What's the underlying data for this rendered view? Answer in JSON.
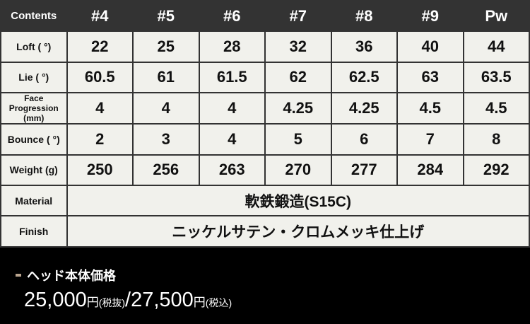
{
  "header": {
    "contents": "Contents",
    "clubs": [
      "#4",
      "#5",
      "#6",
      "#7",
      "#8",
      "#9",
      "Pw"
    ]
  },
  "rows": [
    {
      "label": "Loft ( °)",
      "values": [
        "22",
        "25",
        "28",
        "32",
        "36",
        "40",
        "44"
      ]
    },
    {
      "label": "Lie ( °)",
      "values": [
        "60.5",
        "61",
        "61.5",
        "62",
        "62.5",
        "63",
        "63.5"
      ]
    },
    {
      "label": "Face Progression (mm)",
      "values": [
        "4",
        "4",
        "4",
        "4.25",
        "4.25",
        "4.5",
        "4.5"
      ]
    },
    {
      "label": "Bounce ( °)",
      "values": [
        "2",
        "3",
        "4",
        "5",
        "6",
        "7",
        "8"
      ]
    },
    {
      "label": "Weight (g)",
      "values": [
        "250",
        "256",
        "263",
        "270",
        "277",
        "284",
        "292"
      ]
    }
  ],
  "material": {
    "label": "Material",
    "value": "軟鉄鍛造(S15C)"
  },
  "finish": {
    "label": "Finish",
    "value": "ニッケルサテン・クロムメッキ仕上げ"
  },
  "price": {
    "title": "ヘッド本体価格",
    "excl": "25,000",
    "yen1": "円",
    "excl_note": "(税抜)",
    "sep": "/",
    "incl": "27,500",
    "yen2": "円",
    "incl_note": "(税込)",
    "accent": "#b9a48e"
  }
}
